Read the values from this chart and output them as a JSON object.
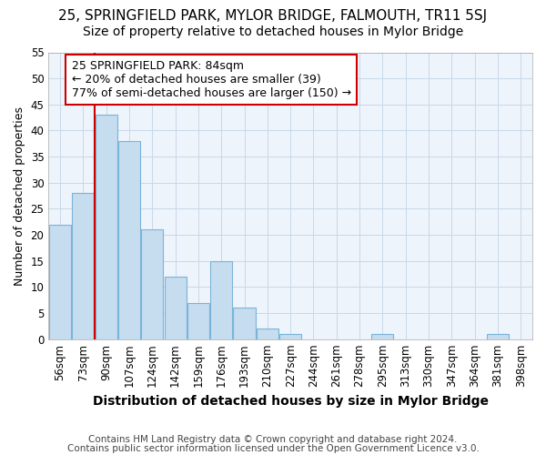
{
  "title": "25, SPRINGFIELD PARK, MYLOR BRIDGE, FALMOUTH, TR11 5SJ",
  "subtitle": "Size of property relative to detached houses in Mylor Bridge",
  "xlabel": "Distribution of detached houses by size in Mylor Bridge",
  "ylabel": "Number of detached properties",
  "footnote1": "Contains HM Land Registry data © Crown copyright and database right 2024.",
  "footnote2": "Contains public sector information licensed under the Open Government Licence v3.0.",
  "categories": [
    "56sqm",
    "73sqm",
    "90sqm",
    "107sqm",
    "124sqm",
    "142sqm",
    "159sqm",
    "176sqm",
    "193sqm",
    "210sqm",
    "227sqm",
    "244sqm",
    "261sqm",
    "278sqm",
    "295sqm",
    "313sqm",
    "330sqm",
    "347sqm",
    "364sqm",
    "381sqm",
    "398sqm"
  ],
  "values": [
    22,
    28,
    43,
    38,
    21,
    12,
    7,
    15,
    6,
    2,
    1,
    0,
    0,
    0,
    1,
    0,
    0,
    0,
    0,
    1,
    0
  ],
  "bar_color": "#c6dcef",
  "bar_edge_color": "#7ab4d8",
  "vline_color": "#cc0000",
  "vline_x": 1.5,
  "annotation_text": "25 SPRINGFIELD PARK: 84sqm\n← 20% of detached houses are smaller (39)\n77% of semi-detached houses are larger (150) →",
  "annotation_box_facecolor": "#ffffff",
  "annotation_box_edgecolor": "#cc0000",
  "plot_bg_color": "#eef4fb",
  "fig_bg_color": "#ffffff",
  "ylim": [
    0,
    55
  ],
  "yticks": [
    0,
    5,
    10,
    15,
    20,
    25,
    30,
    35,
    40,
    45,
    50,
    55
  ],
  "title_fontsize": 11,
  "subtitle_fontsize": 10,
  "xlabel_fontsize": 10,
  "ylabel_fontsize": 9,
  "tick_fontsize": 8.5,
  "annotation_fontsize": 9,
  "footnote_fontsize": 7.5,
  "grid_color": "#c8d8e8",
  "spine_color": "#aaaaaa"
}
